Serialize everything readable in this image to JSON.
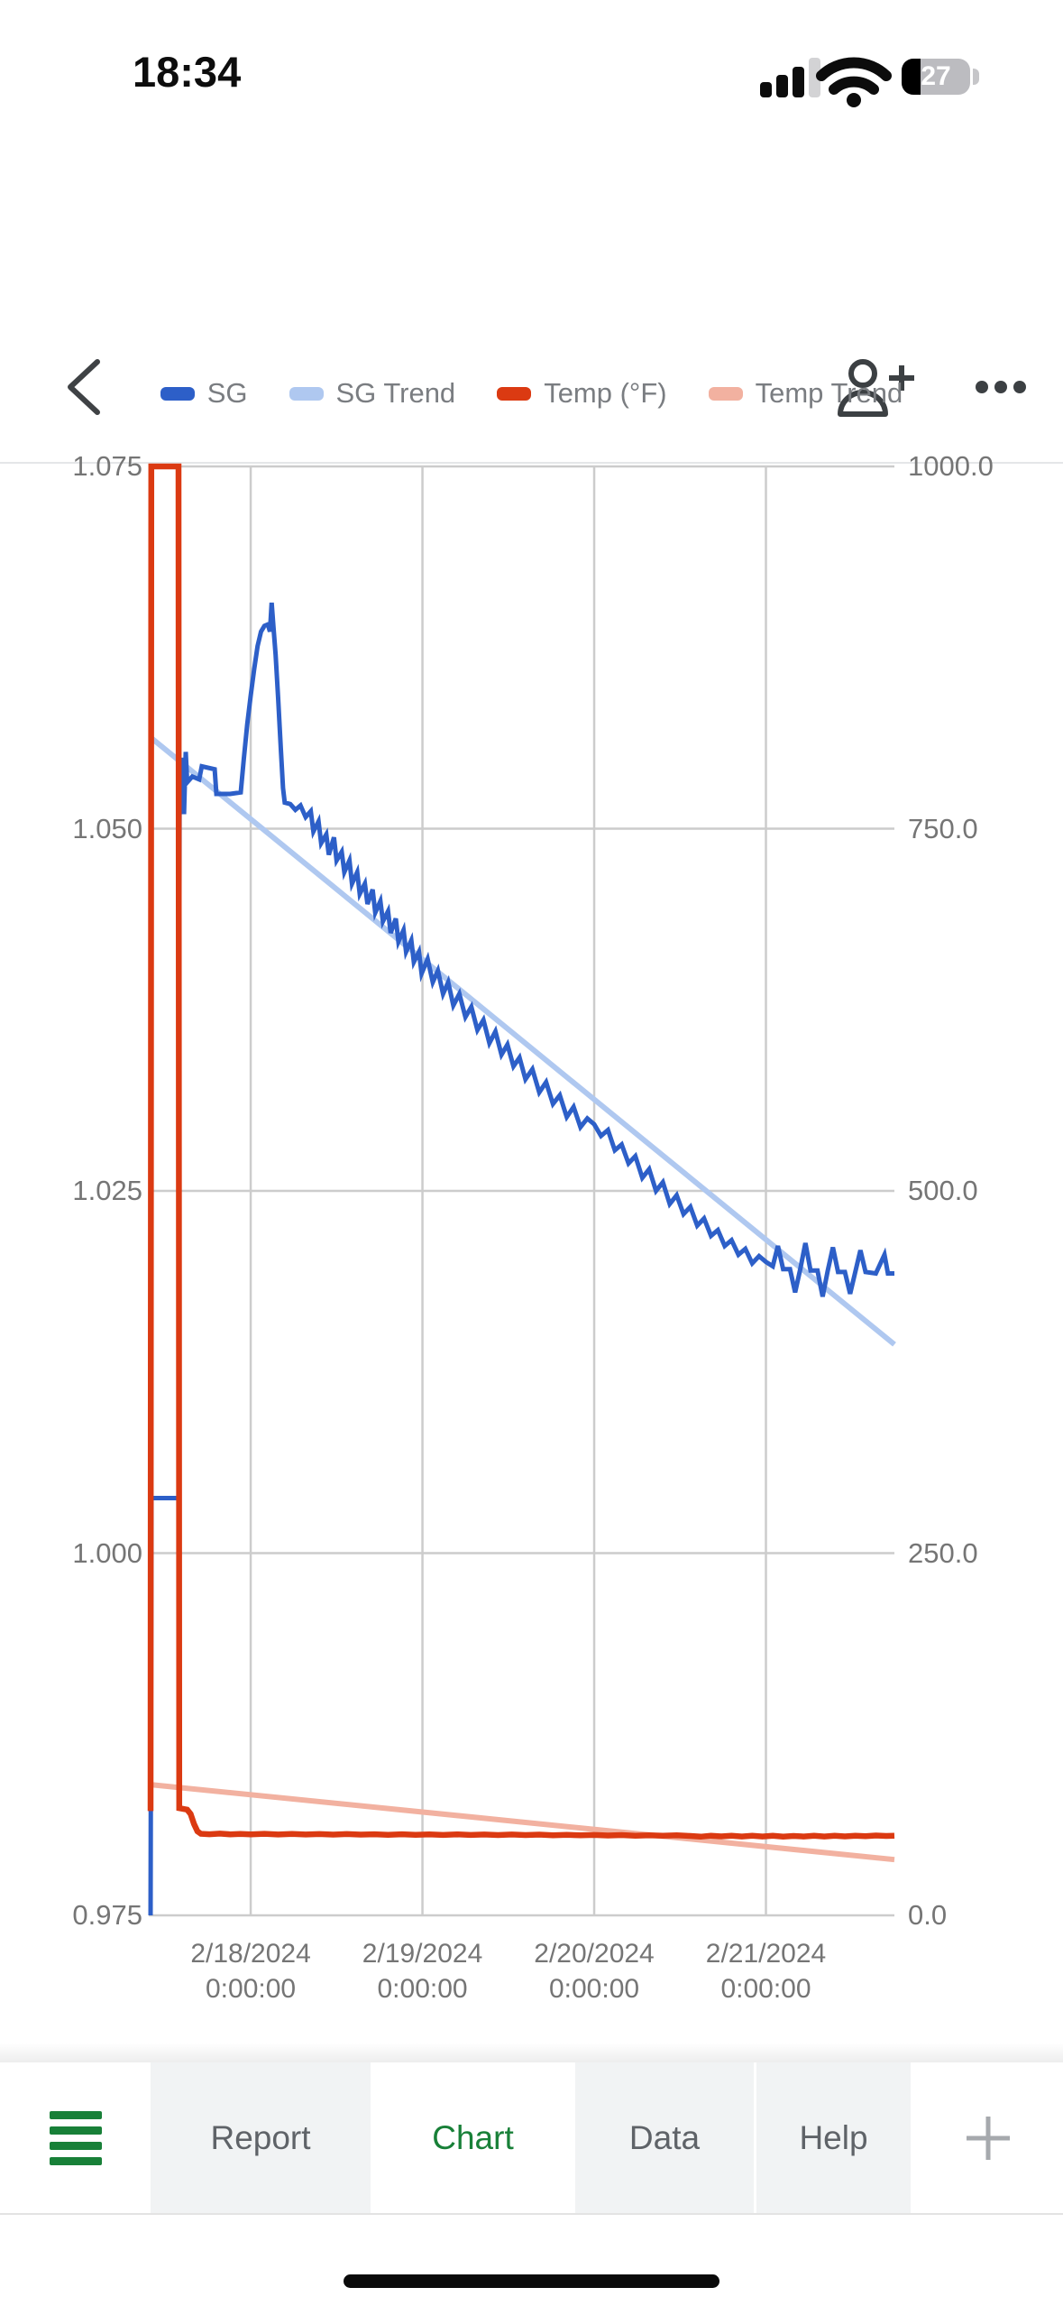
{
  "status_bar": {
    "time": "18:34",
    "battery_percent": "27",
    "signal_bars_filled": 3,
    "signal_bars_total": 4
  },
  "nav_bar": {
    "back_icon": "chevron-left-icon",
    "share_icon": "person-add-icon",
    "more_icon": "ellipsis-icon"
  },
  "legend": {
    "items": [
      {
        "label": "SG",
        "color": "#2d5fc8"
      },
      {
        "label": "SG Trend",
        "color": "#afc8f0"
      },
      {
        "label": "Temp (°F)",
        "color": "#db3a12"
      },
      {
        "label": "Temp Trend",
        "color": "#f2b1a0"
      }
    ]
  },
  "chart_data": {
    "type": "line",
    "title": "",
    "grid": true,
    "legend_position": "top",
    "x_axis": {
      "domain_days_from_2_18": [
        -0.583,
        3.748
      ],
      "ticks": [
        {
          "date": "2/18/2024",
          "time": "0:00:00",
          "t": 0
        },
        {
          "date": "2/19/2024",
          "time": "0:00:00",
          "t": 1
        },
        {
          "date": "2/20/2024",
          "time": "0:00:00",
          "t": 2
        },
        {
          "date": "2/21/2024",
          "time": "0:00:00",
          "t": 3
        }
      ]
    },
    "y_left": {
      "labels": [
        "1.075",
        "1.050",
        "1.025",
        "1.000",
        "0.975"
      ],
      "values": [
        1.075,
        1.05,
        1.025,
        1.0,
        0.975
      ],
      "domain": [
        0.975,
        1.075
      ]
    },
    "y_right": {
      "labels": [
        "1000.0",
        "750.0",
        "500.0",
        "250.0",
        "0.0"
      ],
      "values": [
        1000,
        750,
        500,
        250,
        0
      ],
      "domain": [
        0,
        1000
      ]
    },
    "series": [
      {
        "name": "SG Trend",
        "axis": "left",
        "color": "#afc8f0",
        "trend": true,
        "points": [
          [
            -0.583,
            1.0563
          ],
          [
            3.748,
            1.0144
          ]
        ]
      },
      {
        "name": "Temp Trend",
        "axis": "right",
        "color": "#f2b1a0",
        "trend": true,
        "points": [
          [
            -0.583,
            90.2
          ],
          [
            3.748,
            38.5
          ]
        ]
      },
      {
        "name": "SG",
        "axis": "left",
        "color": "#2d5fc8",
        "trend": false,
        "points": [
          [
            -0.583,
            0.975
          ],
          [
            -0.578,
            1.0038
          ],
          [
            -0.42,
            1.0038
          ],
          [
            -0.414,
            1.0535
          ],
          [
            -0.404,
            1.052
          ],
          [
            -0.396,
            1.0549
          ],
          [
            -0.388,
            1.051
          ],
          [
            -0.378,
            1.0553
          ],
          [
            -0.37,
            1.0532
          ],
          [
            -0.34,
            1.0536
          ],
          [
            -0.3,
            1.0534
          ],
          [
            -0.285,
            1.0543
          ],
          [
            -0.21,
            1.0541
          ],
          [
            -0.2,
            1.0524
          ],
          [
            -0.12,
            1.0524
          ],
          [
            -0.058,
            1.0525
          ],
          [
            -0.04,
            1.0548
          ],
          [
            -0.02,
            1.0572
          ],
          [
            0.0,
            1.0592
          ],
          [
            0.02,
            1.061
          ],
          [
            0.04,
            1.0626
          ],
          [
            0.06,
            1.0636
          ],
          [
            0.08,
            1.064
          ],
          [
            0.1,
            1.0641
          ],
          [
            0.112,
            1.0636
          ],
          [
            0.122,
            1.0656
          ],
          [
            0.132,
            1.064
          ],
          [
            0.145,
            1.062
          ],
          [
            0.16,
            1.059
          ],
          [
            0.175,
            1.0556
          ],
          [
            0.188,
            1.0528
          ],
          [
            0.198,
            1.0518
          ],
          [
            0.23,
            1.0517
          ],
          [
            0.26,
            1.0513
          ],
          [
            0.29,
            1.0516
          ],
          [
            0.32,
            1.0508
          ],
          [
            0.35,
            1.0512
          ],
          [
            0.365,
            1.0498
          ],
          [
            0.395,
            1.0505
          ],
          [
            0.41,
            1.049
          ],
          [
            0.44,
            1.0496
          ],
          [
            0.455,
            1.0482
          ],
          [
            0.485,
            1.0494
          ],
          [
            0.5,
            1.0478
          ],
          [
            0.53,
            1.0484
          ],
          [
            0.545,
            1.047
          ],
          [
            0.575,
            1.0478
          ],
          [
            0.59,
            1.0462
          ],
          [
            0.62,
            1.047
          ],
          [
            0.635,
            1.0455
          ],
          [
            0.665,
            1.0462
          ],
          [
            0.68,
            1.0448
          ],
          [
            0.71,
            1.0458
          ],
          [
            0.725,
            1.0442
          ],
          [
            0.755,
            1.045
          ],
          [
            0.77,
            1.0436
          ],
          [
            0.8,
            1.0443
          ],
          [
            0.815,
            1.0428
          ],
          [
            0.845,
            1.0438
          ],
          [
            0.86,
            1.0422
          ],
          [
            0.89,
            1.043
          ],
          [
            0.905,
            1.0415
          ],
          [
            0.935,
            1.0423
          ],
          [
            0.95,
            1.0408
          ],
          [
            0.98,
            1.0415
          ],
          [
            0.995,
            1.04
          ],
          [
            1.03,
            1.041
          ],
          [
            1.06,
            1.0394
          ],
          [
            1.09,
            1.0402
          ],
          [
            1.12,
            1.0386
          ],
          [
            1.15,
            1.0394
          ],
          [
            1.18,
            1.0378
          ],
          [
            1.215,
            1.0386
          ],
          [
            1.25,
            1.037
          ],
          [
            1.285,
            1.0377
          ],
          [
            1.32,
            1.0361
          ],
          [
            1.355,
            1.0368
          ],
          [
            1.39,
            1.0352
          ],
          [
            1.425,
            1.036
          ],
          [
            1.46,
            1.0344
          ],
          [
            1.495,
            1.0351
          ],
          [
            1.53,
            1.0336
          ],
          [
            1.565,
            1.0342
          ],
          [
            1.6,
            1.0327
          ],
          [
            1.64,
            1.0334
          ],
          [
            1.68,
            1.0318
          ],
          [
            1.72,
            1.0325
          ],
          [
            1.76,
            1.031
          ],
          [
            1.8,
            1.0316
          ],
          [
            1.84,
            1.0301
          ],
          [
            1.88,
            1.0308
          ],
          [
            1.92,
            1.0294
          ],
          [
            1.96,
            1.03
          ],
          [
            2.0,
            1.0296
          ],
          [
            2.04,
            1.0288
          ],
          [
            2.08,
            1.0292
          ],
          [
            2.12,
            1.0278
          ],
          [
            2.16,
            1.0282
          ],
          [
            2.2,
            1.0269
          ],
          [
            2.24,
            1.0274
          ],
          [
            2.28,
            1.0259
          ],
          [
            2.32,
            1.0265
          ],
          [
            2.36,
            1.025
          ],
          [
            2.4,
            1.0256
          ],
          [
            2.44,
            1.0241
          ],
          [
            2.48,
            1.0247
          ],
          [
            2.52,
            1.0234
          ],
          [
            2.56,
            1.0239
          ],
          [
            2.6,
            1.0226
          ],
          [
            2.64,
            1.0231
          ],
          [
            2.68,
            1.0219
          ],
          [
            2.72,
            1.0223
          ],
          [
            2.76,
            1.0212
          ],
          [
            2.8,
            1.0216
          ],
          [
            2.84,
            1.0206
          ],
          [
            2.88,
            1.021
          ],
          [
            2.92,
            1.02
          ],
          [
            2.96,
            1.0205
          ],
          [
            3.0,
            1.0201
          ],
          [
            3.04,
            1.0198
          ],
          [
            3.07,
            1.0212
          ],
          [
            3.1,
            1.0196
          ],
          [
            3.14,
            1.0196
          ],
          [
            3.17,
            1.018
          ],
          [
            3.2,
            1.0196
          ],
          [
            3.23,
            1.0214
          ],
          [
            3.26,
            1.0195
          ],
          [
            3.3,
            1.0195
          ],
          [
            3.33,
            1.0177
          ],
          [
            3.36,
            1.0195
          ],
          [
            3.39,
            1.0211
          ],
          [
            3.42,
            1.0194
          ],
          [
            3.46,
            1.0194
          ],
          [
            3.49,
            1.0179
          ],
          [
            3.52,
            1.0194
          ],
          [
            3.55,
            1.0209
          ],
          [
            3.58,
            1.0194
          ],
          [
            3.64,
            1.0193
          ],
          [
            3.69,
            1.0206
          ],
          [
            3.71,
            1.0193
          ],
          [
            3.748,
            1.0193
          ]
        ]
      },
      {
        "name": "Temp (°F)",
        "axis": "right",
        "color": "#db3a12",
        "trend": false,
        "points": [
          [
            -0.583,
            72
          ],
          [
            -0.579,
            1000
          ],
          [
            -0.42,
            1000
          ],
          [
            -0.416,
            74
          ],
          [
            -0.37,
            73
          ],
          [
            -0.35,
            70
          ],
          [
            -0.33,
            63
          ],
          [
            -0.31,
            58
          ],
          [
            -0.29,
            56.3
          ],
          [
            -0.24,
            56.0
          ],
          [
            -0.18,
            56.4
          ],
          [
            -0.12,
            55.9
          ],
          [
            -0.06,
            56.2
          ],
          [
            0.0,
            55.9
          ],
          [
            0.08,
            56.3
          ],
          [
            0.16,
            55.8
          ],
          [
            0.24,
            56.2
          ],
          [
            0.32,
            55.8
          ],
          [
            0.4,
            56.1
          ],
          [
            0.48,
            55.7
          ],
          [
            0.56,
            56.1
          ],
          [
            0.64,
            55.7
          ],
          [
            0.72,
            56.0
          ],
          [
            0.8,
            55.6
          ],
          [
            0.88,
            56.0
          ],
          [
            0.96,
            55.6
          ],
          [
            1.04,
            55.9
          ],
          [
            1.12,
            55.5
          ],
          [
            1.2,
            55.9
          ],
          [
            1.28,
            55.5
          ],
          [
            1.36,
            55.8
          ],
          [
            1.44,
            55.4
          ],
          [
            1.52,
            55.8
          ],
          [
            1.6,
            55.4
          ],
          [
            1.68,
            55.7
          ],
          [
            1.76,
            55.3
          ],
          [
            1.84,
            55.6
          ],
          [
            1.92,
            55.2
          ],
          [
            2.0,
            55.5
          ],
          [
            2.08,
            55.1
          ],
          [
            2.16,
            55.4
          ],
          [
            2.24,
            55.0
          ],
          [
            2.32,
            55.3
          ],
          [
            2.4,
            54.9
          ],
          [
            2.48,
            55.2
          ],
          [
            2.56,
            54.8
          ],
          [
            2.62,
            54.3
          ],
          [
            2.68,
            55.0
          ],
          [
            2.74,
            54.5
          ],
          [
            2.8,
            55.0
          ],
          [
            2.86,
            54.4
          ],
          [
            2.92,
            54.9
          ],
          [
            2.98,
            54.4
          ],
          [
            3.04,
            54.9
          ],
          [
            3.1,
            54.3
          ],
          [
            3.16,
            54.8
          ],
          [
            3.22,
            54.4
          ],
          [
            3.28,
            54.9
          ],
          [
            3.34,
            54.4
          ],
          [
            3.4,
            54.9
          ],
          [
            3.46,
            54.5
          ],
          [
            3.52,
            55.0
          ],
          [
            3.58,
            54.6
          ],
          [
            3.64,
            55.1
          ],
          [
            3.7,
            54.8
          ],
          [
            3.748,
            55.0
          ]
        ]
      }
    ]
  },
  "tab_bar": {
    "menu_icon": "sheets-menu-icon",
    "tabs": [
      {
        "label": "Report",
        "active": false
      },
      {
        "label": "Chart",
        "active": true
      },
      {
        "label": "Data",
        "active": false
      },
      {
        "label": "Help",
        "active": false
      }
    ],
    "add_icon": "plus-icon"
  },
  "colors": {
    "sg": "#2d5fc8",
    "sg_trend": "#afc8f0",
    "temp": "#db3a12",
    "temp_trend": "#f2b1a0",
    "gridline": "#cccccc",
    "axis_text": "#757575",
    "tab_text": "#5f6368",
    "tab_active": "#188038",
    "icon": "#3c4043"
  }
}
